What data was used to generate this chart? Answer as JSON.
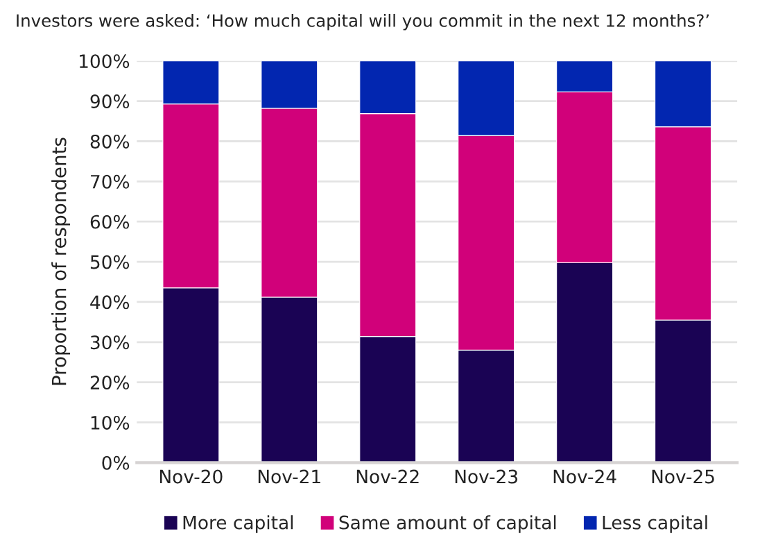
{
  "chart_data": {
    "type": "bar",
    "stacked": true,
    "title": "Investors were asked: ‘How much capital will you commit in the next 12 months?’",
    "ylabel": "Proportion of respondents",
    "categories": [
      "Nov-20",
      "Nov-21",
      "Nov-22",
      "Nov-23",
      "Nov-24",
      "Nov-25"
    ],
    "series": [
      {
        "name": "More capital",
        "color": "#1a0354",
        "values": [
          43.5,
          41.2,
          31.4,
          28.0,
          49.8,
          35.5
        ]
      },
      {
        "name": "Same amount of capital",
        "color": "#d1017a",
        "values": [
          45.8,
          47.0,
          55.5,
          53.4,
          42.5,
          48.1
        ]
      },
      {
        "name": "Less capital",
        "color": "#0226b0",
        "values": [
          10.7,
          11.8,
          13.1,
          18.6,
          7.7,
          16.4
        ]
      }
    ],
    "ylim": [
      0,
      100
    ],
    "yticks": [
      {
        "value": 0,
        "label": "0%"
      },
      {
        "value": 10,
        "label": "10%"
      },
      {
        "value": 20,
        "label": "20%"
      },
      {
        "value": 30,
        "label": "30%"
      },
      {
        "value": 40,
        "label": "40%"
      },
      {
        "value": 50,
        "label": "50%"
      },
      {
        "value": 60,
        "label": "60%"
      },
      {
        "value": 70,
        "label": "70%"
      },
      {
        "value": 80,
        "label": "80%"
      },
      {
        "value": 90,
        "label": "90%"
      },
      {
        "value": 100,
        "label": "100%"
      }
    ],
    "grid": "y",
    "legend": "bottom"
  }
}
